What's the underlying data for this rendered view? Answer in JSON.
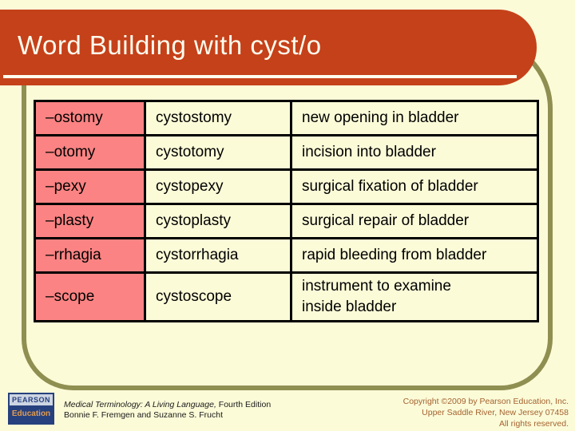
{
  "slide": {
    "title": "Word Building with cyst/o"
  },
  "table": {
    "rows": [
      {
        "suffix": "–ostomy",
        "term": "cystostomy",
        "definition": "new opening in bladder"
      },
      {
        "suffix": "–otomy",
        "term": "cystotomy",
        "definition": "incision into bladder"
      },
      {
        "suffix": "–pexy",
        "term": "cystopexy",
        "definition": "surgical fixation of bladder"
      },
      {
        "suffix": "–plasty",
        "term": "cystoplasty",
        "definition": "surgical repair of bladder"
      },
      {
        "suffix": "–rrhagia",
        "term": "cystorrhagia",
        "definition": "rapid bleeding from bladder"
      },
      {
        "suffix": "–scope",
        "term": "cystoscope",
        "definition": "instrument to examine\ninside bladder"
      }
    ]
  },
  "footer": {
    "logo": {
      "line1": "PEARSON",
      "line2": "Education"
    },
    "book": {
      "title_italic": "Medical Terminology: A Living Language,",
      "title_rest": " Fourth Edition",
      "authors": "Bonnie F. Fremgen and Suzanne S. Frucht"
    },
    "copyright": {
      "line1": "Copyright ©2009 by Pearson Education, Inc.",
      "line2": "Upper Saddle River, New Jersey 07458",
      "line3": "All rights reserved."
    }
  },
  "colors": {
    "background": "#FBFBD8",
    "banner": "#C5411A",
    "banner_text": "#FFFDEE",
    "frame": "#8F8F52",
    "cell_pink": "#FB8383",
    "cell_yellow": "#FBFBD8",
    "table_border": "#000000",
    "logo_navy": "#26417E",
    "logo_text": "#E09C52",
    "copyright_text": "#A5622F"
  }
}
